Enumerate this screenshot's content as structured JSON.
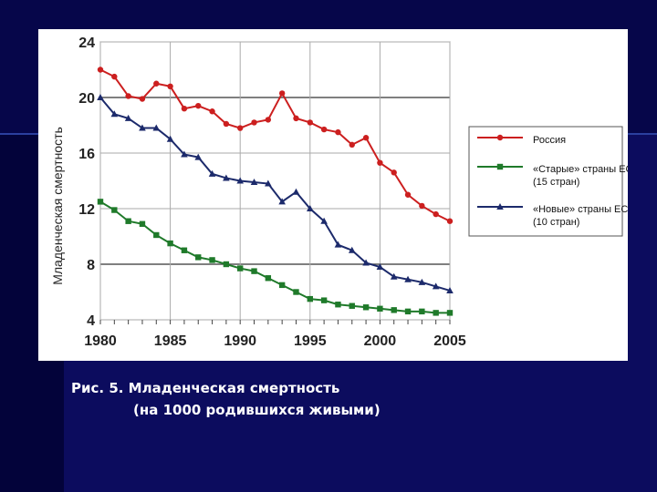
{
  "caption": {
    "line1": "Рис. 5. Младенческая смертность",
    "line2": "(на 1000 родившихся живыми)"
  },
  "chart_data": {
    "type": "line",
    "ylabel": "Младенческая смертность",
    "xlabel": "",
    "ylim": [
      4,
      24
    ],
    "xlim": [
      1980,
      2005
    ],
    "yticks": [
      "4",
      "8",
      "12",
      "16",
      "20",
      "24"
    ],
    "xticks": [
      "1980",
      "1985",
      "1990",
      "1995",
      "2000",
      "2005"
    ],
    "grid": "horizontal-and-vertical",
    "legend_position": "right",
    "x": [
      1980,
      1981,
      1982,
      1983,
      1984,
      1985,
      1986,
      1987,
      1988,
      1989,
      1990,
      1991,
      1992,
      1993,
      1994,
      1995,
      1996,
      1997,
      1998,
      1999,
      2000,
      2001,
      2002,
      2003,
      2004,
      2005
    ],
    "series": [
      {
        "name": "Россия",
        "color": "#cc1f1f",
        "marker": "circle",
        "values": [
          22.0,
          21.5,
          20.1,
          19.9,
          21.0,
          20.8,
          19.2,
          19.4,
          19.0,
          18.1,
          17.8,
          18.2,
          18.4,
          20.3,
          18.5,
          18.2,
          17.7,
          17.5,
          16.6,
          17.1,
          15.3,
          14.6,
          13.0,
          12.2,
          11.6,
          11.1
        ]
      },
      {
        "name_line1": "«Старые» страны ЕС",
        "name_line2": "(15 стран)",
        "color": "#1f7a2a",
        "marker": "square",
        "values": [
          12.5,
          11.9,
          11.1,
          10.9,
          10.1,
          9.5,
          9.0,
          8.5,
          8.3,
          8.0,
          7.7,
          7.5,
          7.0,
          6.5,
          6.0,
          5.5,
          5.4,
          5.1,
          5.0,
          4.9,
          4.8,
          4.7,
          4.6,
          4.6,
          4.5,
          4.5
        ]
      },
      {
        "name_line1": "«Новые» страны ЕС",
        "name_line2": "(10 стран)",
        "color": "#1c2a6b",
        "marker": "triangle",
        "values": [
          20.0,
          18.8,
          18.5,
          17.8,
          17.8,
          17.0,
          15.9,
          15.7,
          14.5,
          14.2,
          14.0,
          13.9,
          13.8,
          12.5,
          13.2,
          12.0,
          11.1,
          9.4,
          9.0,
          8.1,
          7.8,
          7.1,
          6.9,
          6.7,
          6.4,
          6.1
        ]
      }
    ]
  }
}
